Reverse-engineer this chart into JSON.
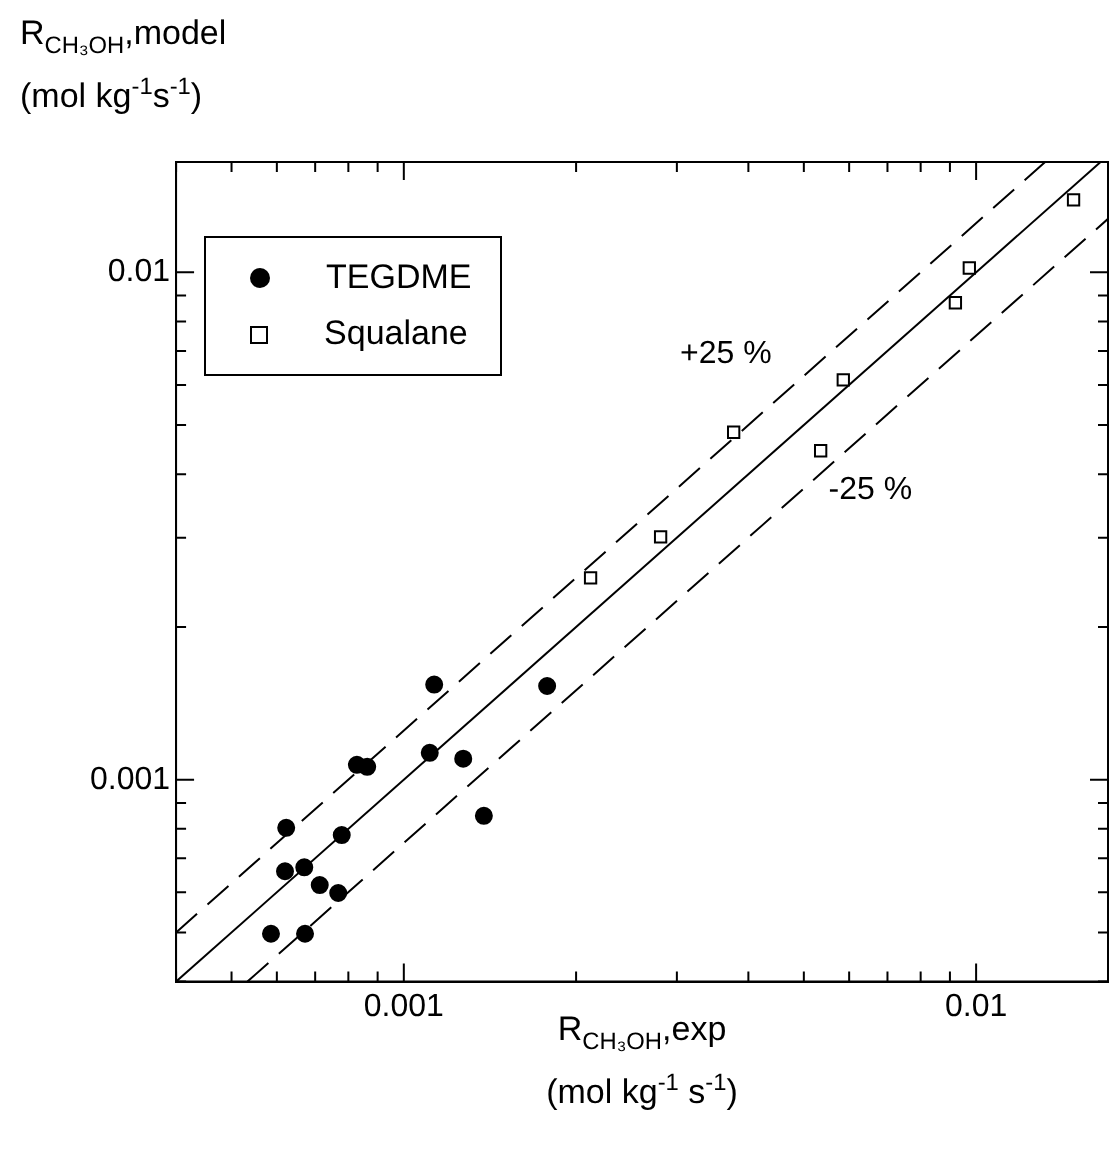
{
  "chart_data": {
    "type": "scatter",
    "xlabel": "R$_{CH₃OH}$,exp\n(mol kg$^{-1}$ s$^{-1}$)",
    "ylabel": "R$_{CH₃OH}$,model\n(mol kg$^{-1}$s$^{-1}$)",
    "log": "xy",
    "grid": false,
    "legend": "top left",
    "xlim": [
      0.0004,
      0.017
    ],
    "ylim": [
      0.0004,
      0.0165
    ],
    "xticks": [
      {
        "value": 0.0004,
        "label": null
      },
      {
        "value": 0.0005,
        "label": null
      },
      {
        "value": 0.0006,
        "label": null
      },
      {
        "value": 0.0007,
        "label": null
      },
      {
        "value": 0.0008,
        "label": null
      },
      {
        "value": 0.0009,
        "label": null
      },
      0.001,
      {
        "value": 0.002,
        "label": null
      },
      {
        "value": 0.003,
        "label": null
      },
      {
        "value": 0.004,
        "label": null
      },
      {
        "value": 0.005,
        "label": null
      },
      {
        "value": 0.006,
        "label": null
      },
      {
        "value": 0.007,
        "label": null
      },
      {
        "value": 0.008,
        "label": null
      },
      {
        "value": 0.009,
        "label": null
      },
      0.01
    ],
    "yticks": [
      {
        "value": 0.0004,
        "label": null
      },
      {
        "value": 0.0005,
        "label": null
      },
      {
        "value": 0.0006,
        "label": null
      },
      {
        "value": 0.0007,
        "label": null
      },
      {
        "value": 0.0008,
        "label": null
      },
      {
        "value": 0.0009,
        "label": null
      },
      0.001,
      {
        "value": 0.002,
        "label": null
      },
      {
        "value": 0.003,
        "label": null
      },
      {
        "value": 0.004,
        "label": null
      },
      {
        "value": 0.005,
        "label": null
      },
      {
        "value": 0.006,
        "label": null
      },
      {
        "value": 0.007,
        "label": null
      },
      {
        "value": 0.008,
        "label": null
      },
      {
        "value": 0.009,
        "label": null
      },
      0.01
    ],
    "annotations": [
      "+25 %",
      "-25 %"
    ],
    "series": [
      {
        "name": "TEGDME",
        "marker": "circle",
        "color": "#000000",
        "x": [
          0.000586,
          0.000672,
          0.00062,
          0.00067,
          0.000623,
          0.000713,
          0.000768,
          0.000779,
          0.000828,
          0.000863,
          0.00113,
          0.00111,
          0.00127,
          0.00138,
          0.00178
        ],
        "values": [
          0.000497,
          0.000497,
          0.00066,
          0.000672,
          0.000804,
          0.00062,
          0.000598,
          0.000778,
          0.00107,
          0.00106,
          0.00154,
          0.00113,
          0.0011,
          0.000849,
          0.00153
        ]
      },
      {
        "name": "Squalane",
        "marker": "square",
        "color": "#000000",
        "x": [
          0.00212,
          0.00281,
          0.00377,
          0.00535,
          0.00586,
          0.0092,
          0.00973,
          0.0148
        ],
        "values": [
          0.0025,
          0.00301,
          0.00484,
          0.00445,
          0.00614,
          0.00871,
          0.0102,
          0.0139
        ]
      },
      {
        "type": "line",
        "marker": "none",
        "line_style": "solid",
        "color": "#000000",
        "x": [
          0.0004,
          0.0165
        ],
        "values": [
          0.0004,
          0.0165
        ]
      },
      {
        "type": "line",
        "marker": "none",
        "line_style": "dashed",
        "color": "#000000",
        "x": [
          0.0004,
          0.0132
        ],
        "values": [
          0.0005,
          0.0165
        ]
      },
      {
        "type": "line",
        "marker": "none",
        "line_style": "dashed",
        "color": "#000000",
        "x": [
          0.000533,
          0.017
        ],
        "values": [
          0.0004,
          0.01275
        ]
      }
    ]
  }
}
